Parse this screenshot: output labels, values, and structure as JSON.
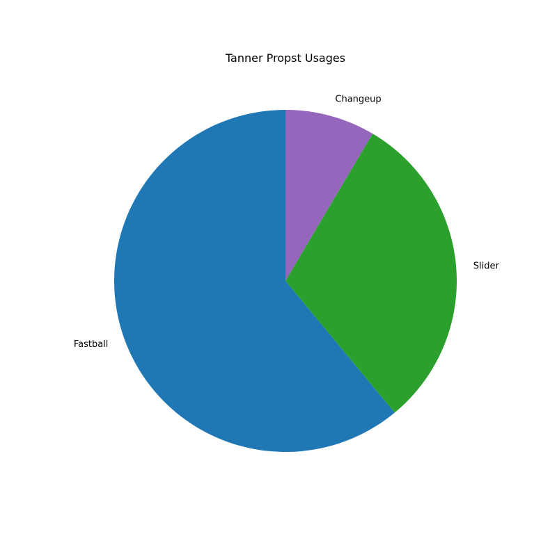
{
  "chart_data": {
    "type": "pie",
    "title": "Tanner Propst Usages",
    "start_angle_deg": 90,
    "direction": "clockwise",
    "slices": [
      {
        "label": "Changeup",
        "value": 8.5,
        "color": "#9467bd"
      },
      {
        "label": "Slider",
        "value": 30.5,
        "color": "#2ca02c"
      },
      {
        "label": "Fastball",
        "value": 61.0,
        "color": "#1f77b4"
      }
    ]
  }
}
